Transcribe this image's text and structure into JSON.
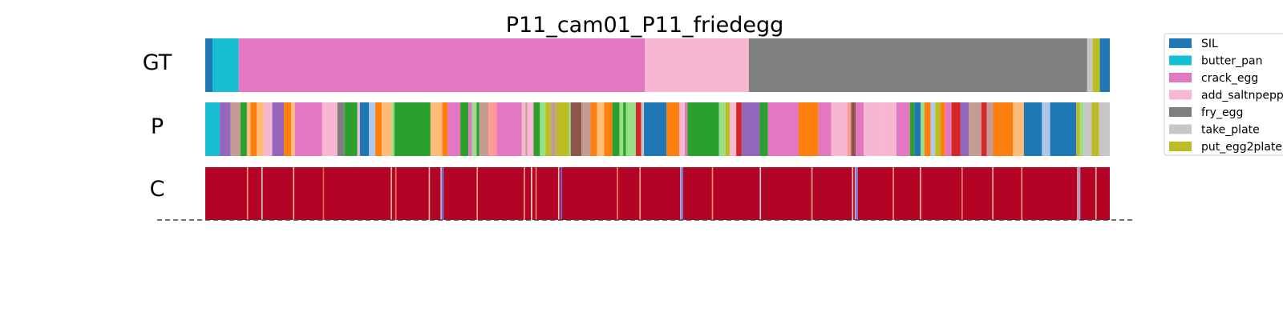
{
  "chart_data": {
    "type": "segmentation-timeline",
    "title": "P11_cam01_P11_friedegg",
    "rows": [
      "GT",
      "P",
      "C"
    ],
    "legend": {
      "placement": "top-right",
      "entries": [
        {
          "label": "SIL",
          "color": "#1f77b4"
        },
        {
          "label": "butter_pan",
          "color": "#17becf"
        },
        {
          "label": "crack_egg",
          "color": "#e377c2"
        },
        {
          "label": "add_saltnpepper",
          "color": "#f7b6d2"
        },
        {
          "label": "fry_egg",
          "color": "#7f7f7f"
        },
        {
          "label": "take_plate",
          "color": "#c7c7c7"
        },
        {
          "label": "put_egg2plate",
          "color": "#bcbd22"
        }
      ]
    },
    "x_range": [
      0,
      1
    ],
    "gt_segments": [
      {
        "start": 0.0,
        "end": 0.008,
        "label": "SIL"
      },
      {
        "start": 0.008,
        "end": 0.037,
        "label": "butter_pan"
      },
      {
        "start": 0.037,
        "end": 0.486,
        "label": "crack_egg"
      },
      {
        "start": 0.486,
        "end": 0.601,
        "label": "add_saltnpepper"
      },
      {
        "start": 0.601,
        "end": 0.975,
        "label": "fry_egg"
      },
      {
        "start": 0.975,
        "end": 0.981,
        "label": "take_plate"
      },
      {
        "start": 0.981,
        "end": 0.989,
        "label": "put_egg2plate"
      },
      {
        "start": 0.989,
        "end": 1.0,
        "label": "SIL"
      }
    ],
    "p_segments": [
      {
        "start": 0.0,
        "end": 0.016,
        "color": "#17becf"
      },
      {
        "start": 0.016,
        "end": 0.028,
        "color": "#9467bd"
      },
      {
        "start": 0.028,
        "end": 0.039,
        "color": "#c49c94"
      },
      {
        "start": 0.039,
        "end": 0.046,
        "color": "#2ca02c"
      },
      {
        "start": 0.046,
        "end": 0.05,
        "color": "#ffbb78"
      },
      {
        "start": 0.05,
        "end": 0.057,
        "color": "#ff7f0e"
      },
      {
        "start": 0.057,
        "end": 0.065,
        "color": "#ffbb78"
      },
      {
        "start": 0.065,
        "end": 0.074,
        "color": "#f7b6d2"
      },
      {
        "start": 0.074,
        "end": 0.087,
        "color": "#9467bd"
      },
      {
        "start": 0.087,
        "end": 0.095,
        "color": "#ff7f0e"
      },
      {
        "start": 0.095,
        "end": 0.099,
        "color": "#ffbb78"
      },
      {
        "start": 0.099,
        "end": 0.129,
        "color": "#e377c2"
      },
      {
        "start": 0.129,
        "end": 0.146,
        "color": "#f7b6d2"
      },
      {
        "start": 0.146,
        "end": 0.154,
        "color": "#7f7f7f"
      },
      {
        "start": 0.154,
        "end": 0.168,
        "color": "#2ca02c"
      },
      {
        "start": 0.168,
        "end": 0.171,
        "color": "#f7b6d2"
      },
      {
        "start": 0.171,
        "end": 0.181,
        "color": "#1f77b4"
      },
      {
        "start": 0.181,
        "end": 0.188,
        "color": "#aec7e8"
      },
      {
        "start": 0.188,
        "end": 0.195,
        "color": "#ff7f0e"
      },
      {
        "start": 0.195,
        "end": 0.206,
        "color": "#ffbb78"
      },
      {
        "start": 0.206,
        "end": 0.209,
        "color": "#98df8a"
      },
      {
        "start": 0.209,
        "end": 0.249,
        "color": "#2ca02c"
      },
      {
        "start": 0.249,
        "end": 0.262,
        "color": "#ffbb78"
      },
      {
        "start": 0.262,
        "end": 0.268,
        "color": "#ff7f0e"
      },
      {
        "start": 0.268,
        "end": 0.282,
        "color": "#e377c2"
      },
      {
        "start": 0.282,
        "end": 0.291,
        "color": "#2ca02c"
      },
      {
        "start": 0.291,
        "end": 0.295,
        "color": "#e377c2"
      },
      {
        "start": 0.295,
        "end": 0.3,
        "color": "#98df8a"
      },
      {
        "start": 0.3,
        "end": 0.303,
        "color": "#2ca02c"
      },
      {
        "start": 0.303,
        "end": 0.313,
        "color": "#c49c94"
      },
      {
        "start": 0.313,
        "end": 0.322,
        "color": "#ff9896"
      },
      {
        "start": 0.322,
        "end": 0.35,
        "color": "#e377c2"
      },
      {
        "start": 0.35,
        "end": 0.354,
        "color": "#f7b6d2"
      },
      {
        "start": 0.354,
        "end": 0.356,
        "color": "#c49c94"
      },
      {
        "start": 0.356,
        "end": 0.363,
        "color": "#f7b6d2"
      },
      {
        "start": 0.363,
        "end": 0.37,
        "color": "#2ca02c"
      },
      {
        "start": 0.37,
        "end": 0.376,
        "color": "#98df8a"
      },
      {
        "start": 0.376,
        "end": 0.382,
        "color": "#bcbd22"
      },
      {
        "start": 0.382,
        "end": 0.388,
        "color": "#c49c94"
      },
      {
        "start": 0.388,
        "end": 0.402,
        "color": "#bcbd22"
      },
      {
        "start": 0.402,
        "end": 0.404,
        "color": "#98df8a"
      },
      {
        "start": 0.404,
        "end": 0.416,
        "color": "#8c564b"
      },
      {
        "start": 0.416,
        "end": 0.426,
        "color": "#c49c94"
      },
      {
        "start": 0.426,
        "end": 0.433,
        "color": "#ff7f0e"
      },
      {
        "start": 0.433,
        "end": 0.441,
        "color": "#ffbb78"
      },
      {
        "start": 0.441,
        "end": 0.45,
        "color": "#ff7f0e"
      },
      {
        "start": 0.45,
        "end": 0.458,
        "color": "#2ca02c"
      },
      {
        "start": 0.458,
        "end": 0.462,
        "color": "#98df8a"
      },
      {
        "start": 0.462,
        "end": 0.465,
        "color": "#2ca02c"
      },
      {
        "start": 0.465,
        "end": 0.476,
        "color": "#98df8a"
      },
      {
        "start": 0.476,
        "end": 0.482,
        "color": "#d62728"
      },
      {
        "start": 0.482,
        "end": 0.485,
        "color": "#c7c7c7"
      },
      {
        "start": 0.485,
        "end": 0.51,
        "color": "#1f77b4"
      },
      {
        "start": 0.51,
        "end": 0.524,
        "color": "#ff7f0e"
      },
      {
        "start": 0.524,
        "end": 0.53,
        "color": "#f7b6d2"
      },
      {
        "start": 0.53,
        "end": 0.533,
        "color": "#e377c2"
      },
      {
        "start": 0.533,
        "end": 0.568,
        "color": "#2ca02c"
      },
      {
        "start": 0.568,
        "end": 0.575,
        "color": "#98df8a"
      },
      {
        "start": 0.575,
        "end": 0.58,
        "color": "#bcbd22"
      },
      {
        "start": 0.58,
        "end": 0.587,
        "color": "#f7b6d2"
      },
      {
        "start": 0.587,
        "end": 0.593,
        "color": "#d62728"
      },
      {
        "start": 0.593,
        "end": 0.613,
        "color": "#9467bd"
      },
      {
        "start": 0.613,
        "end": 0.622,
        "color": "#2ca02c"
      },
      {
        "start": 0.622,
        "end": 0.656,
        "color": "#e377c2"
      },
      {
        "start": 0.656,
        "end": 0.678,
        "color": "#ff7f0e"
      },
      {
        "start": 0.678,
        "end": 0.692,
        "color": "#e377c2"
      },
      {
        "start": 0.692,
        "end": 0.71,
        "color": "#f7b6d2"
      },
      {
        "start": 0.71,
        "end": 0.714,
        "color": "#ff9896"
      },
      {
        "start": 0.714,
        "end": 0.719,
        "color": "#8c564b"
      },
      {
        "start": 0.719,
        "end": 0.728,
        "color": "#e377c2"
      },
      {
        "start": 0.728,
        "end": 0.745,
        "color": "#f7b6d2"
      },
      {
        "start": 0.745,
        "end": 0.764,
        "color": "#f7b6d2"
      },
      {
        "start": 0.764,
        "end": 0.779,
        "color": "#e377c2"
      },
      {
        "start": 0.779,
        "end": 0.784,
        "color": "#2ca02c"
      },
      {
        "start": 0.784,
        "end": 0.791,
        "color": "#1f77b4"
      },
      {
        "start": 0.791,
        "end": 0.795,
        "color": "#98df8a"
      },
      {
        "start": 0.795,
        "end": 0.802,
        "color": "#ff7f0e"
      },
      {
        "start": 0.802,
        "end": 0.807,
        "color": "#aec7e8"
      },
      {
        "start": 0.807,
        "end": 0.813,
        "color": "#bcbd22"
      },
      {
        "start": 0.813,
        "end": 0.818,
        "color": "#ff7f0e"
      },
      {
        "start": 0.818,
        "end": 0.825,
        "color": "#e377c2"
      },
      {
        "start": 0.825,
        "end": 0.835,
        "color": "#d62728"
      },
      {
        "start": 0.835,
        "end": 0.844,
        "color": "#9467bd"
      },
      {
        "start": 0.844,
        "end": 0.858,
        "color": "#c49c94"
      },
      {
        "start": 0.858,
        "end": 0.864,
        "color": "#d62728"
      },
      {
        "start": 0.864,
        "end": 0.871,
        "color": "#c49c94"
      },
      {
        "start": 0.871,
        "end": 0.893,
        "color": "#ff7f0e"
      },
      {
        "start": 0.893,
        "end": 0.905,
        "color": "#ffbb78"
      },
      {
        "start": 0.905,
        "end": 0.925,
        "color": "#1f77b4"
      },
      {
        "start": 0.925,
        "end": 0.934,
        "color": "#aec7e8"
      },
      {
        "start": 0.934,
        "end": 0.963,
        "color": "#1f77b4"
      },
      {
        "start": 0.963,
        "end": 0.967,
        "color": "#bcbd22"
      },
      {
        "start": 0.967,
        "end": 0.971,
        "color": "#98df8a"
      },
      {
        "start": 0.971,
        "end": 0.98,
        "color": "#c7c7c7"
      },
      {
        "start": 0.98,
        "end": 0.988,
        "color": "#bcbd22"
      },
      {
        "start": 0.988,
        "end": 1.0,
        "color": "#c7c7c7"
      }
    ],
    "confidence_row": {
      "base_color": "#b40426",
      "low_confidence_marks": [
        {
          "at": 0.046,
          "color": "#f4987a"
        },
        {
          "at": 0.062,
          "color": "#dcdddd"
        },
        {
          "at": 0.097,
          "color": "#f7b89c"
        },
        {
          "at": 0.13,
          "color": "#e26952"
        },
        {
          "at": 0.205,
          "color": "#f5c4ac"
        },
        {
          "at": 0.21,
          "color": "#ec7f63"
        },
        {
          "at": 0.247,
          "color": "#f7b79b"
        },
        {
          "at": 0.26,
          "color": "#aac7fd"
        },
        {
          "at": 0.262,
          "color": "#6f92f3"
        },
        {
          "at": 0.3,
          "color": "#f6a385"
        },
        {
          "at": 0.352,
          "color": "#f7ac8e"
        },
        {
          "at": 0.36,
          "color": "#e7d7ce"
        },
        {
          "at": 0.365,
          "color": "#f08b6e"
        },
        {
          "at": 0.39,
          "color": "#f2cbb7"
        },
        {
          "at": 0.393,
          "color": "#5977e3"
        },
        {
          "at": 0.455,
          "color": "#ee8468"
        },
        {
          "at": 0.48,
          "color": "#f7af91"
        },
        {
          "at": 0.525,
          "color": "#aec9fc"
        },
        {
          "at": 0.527,
          "color": "#6a8bef"
        },
        {
          "at": 0.56,
          "color": "#f29274"
        },
        {
          "at": 0.613,
          "color": "#c0d4f5"
        },
        {
          "at": 0.67,
          "color": "#f7a688"
        },
        {
          "at": 0.715,
          "color": "#f2cab5"
        },
        {
          "at": 0.718,
          "color": "#aac7fd"
        },
        {
          "at": 0.72,
          "color": "#7396f5"
        },
        {
          "at": 0.76,
          "color": "#f39778"
        },
        {
          "at": 0.79,
          "color": "#f6bfa6"
        },
        {
          "at": 0.836,
          "color": "#f08a6c"
        },
        {
          "at": 0.87,
          "color": "#f7b194"
        },
        {
          "at": 0.902,
          "color": "#f4987a"
        },
        {
          "at": 0.964,
          "color": "#dcdddd"
        },
        {
          "at": 0.966,
          "color": "#9ebeff"
        },
        {
          "at": 0.984,
          "color": "#f7b497"
        }
      ]
    }
  }
}
